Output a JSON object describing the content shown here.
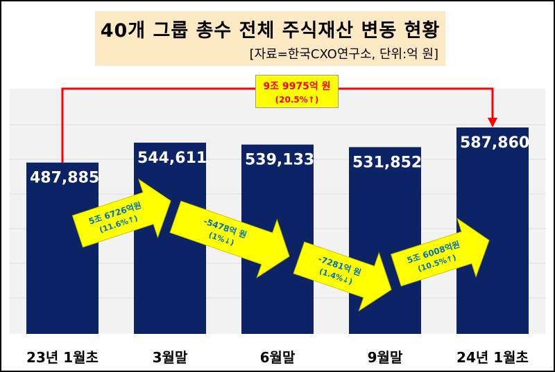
{
  "title": "40개 그룹 총수 전체 주식재산 변동 현황",
  "subtitle": "[자료=한국CXO연구소, 단위:억 원]",
  "colors": {
    "bar": "#0c2465",
    "arrow_fill": "#ffff00",
    "connector": "#ff0000",
    "plot_bg": "#f2f2f2",
    "title_bg": "#fde9c4"
  },
  "callout": {
    "amount": "9조 9975억 원",
    "pct": "(20.5%↑)"
  },
  "chart_data": {
    "type": "bar",
    "categories": [
      "23년 1월초",
      "3월말",
      "6월말",
      "9월말",
      "24년 1월초"
    ],
    "values": [
      487885,
      544611,
      539133,
      531852,
      587860
    ],
    "value_labels": [
      "487,885",
      "544,611",
      "539,133",
      "531,852",
      "587,860"
    ],
    "unit": "억 원",
    "changes": [
      {
        "amount": "5조 6726억원",
        "pct": "(11.6%↑)",
        "direction": "up"
      },
      {
        "amount": "-5478억 원",
        "pct": "(1%↓)",
        "direction": "down"
      },
      {
        "amount": "-7281억 원",
        "pct": "(1.4%↓)",
        "direction": "down"
      },
      {
        "amount": "5조 6008억원",
        "pct": "(10.5%↑)",
        "direction": "up"
      }
    ],
    "total_change": {
      "amount": "9조 9975억 원",
      "pct": "(20.5%↑)",
      "from": "23년 1월초",
      "to": "24년 1월초"
    }
  }
}
